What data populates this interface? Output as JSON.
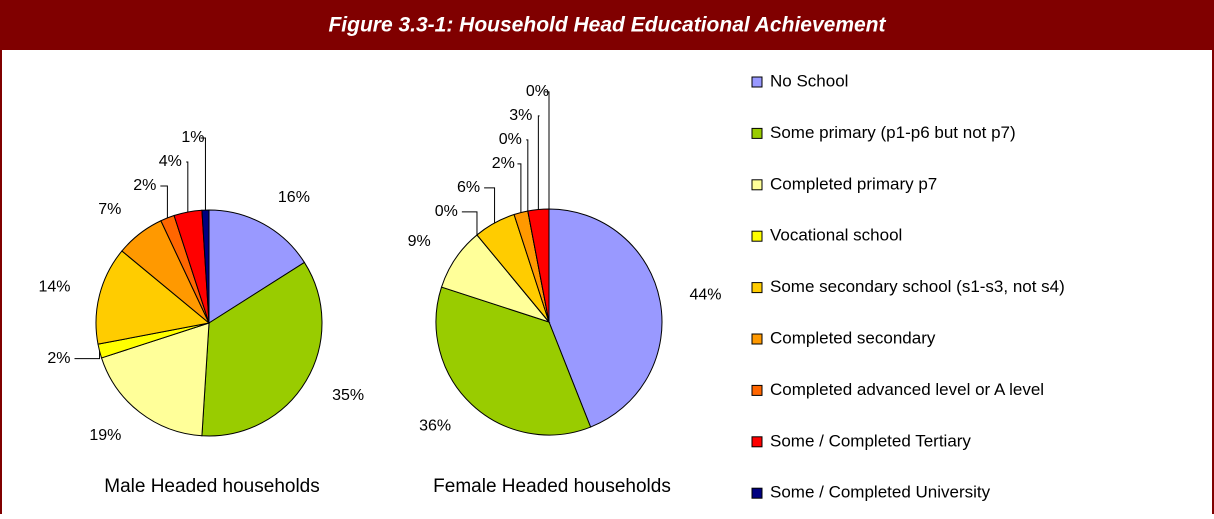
{
  "title": "Figure 3.3-1: Household Head Educational Achievement",
  "chart_data": [
    {
      "type": "pie",
      "title": "Male Headed households",
      "categories": [
        "No School",
        "Some primary (p1-p6 but not p7)",
        "Completed primary p7",
        "Vocational school",
        "Some secondary school (s1-s3, not s4)",
        "Completed secondary",
        "Completed advanced level or A level",
        "Some / Completed Tertiary",
        "Some / Completed University"
      ],
      "colors": [
        "#9999ff",
        "#99cc00",
        "#ffff99",
        "#ffff00",
        "#ffcc00",
        "#ff9900",
        "#ff6600",
        "#ff0000",
        "#000080"
      ],
      "values": [
        16,
        35,
        19,
        2,
        14,
        7,
        2,
        4,
        1
      ],
      "value_labels": [
        "16%",
        "35%",
        "19%",
        "2%",
        "14%",
        "7%",
        "2%",
        "4%",
        "1%"
      ]
    },
    {
      "type": "pie",
      "title": "Female Headed households",
      "categories": [
        "No School",
        "Some primary (p1-p6 but not p7)",
        "Completed primary p7",
        "Vocational school",
        "Some secondary school (s1-s3, not s4)",
        "Completed secondary",
        "Completed advanced level or A level",
        "Some / Completed Tertiary",
        "Some / Completed University"
      ],
      "colors": [
        "#9999ff",
        "#99cc00",
        "#ffff99",
        "#ffff00",
        "#ffcc00",
        "#ff9900",
        "#ff6600",
        "#ff0000",
        "#000080"
      ],
      "values": [
        44,
        36,
        9,
        0,
        6,
        2,
        0,
        3,
        0
      ],
      "value_labels": [
        "44%",
        "36%",
        "9%",
        "0%",
        "6%",
        "2%",
        "0%",
        "3%",
        "0%"
      ]
    }
  ]
}
